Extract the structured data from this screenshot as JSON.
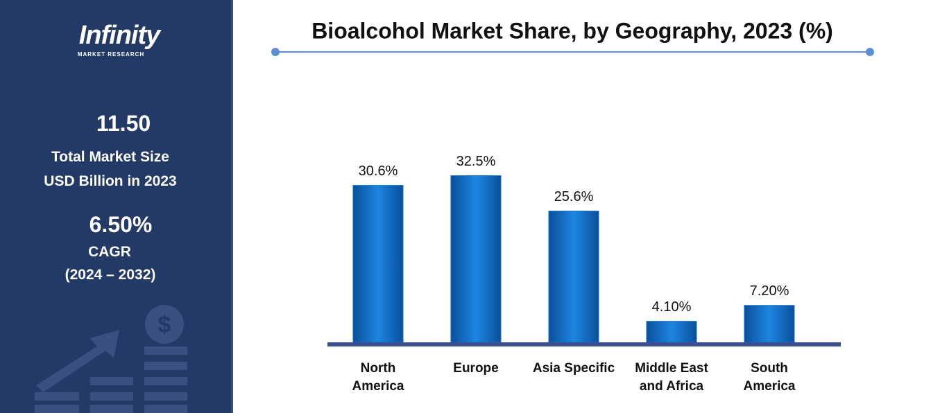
{
  "sidebar": {
    "logo": "Infinity",
    "logo_sub": "MARKET RESEARCH",
    "market_size": "11.50",
    "market_size_label_1": "Total Market Size",
    "market_size_label_2": "USD Billion in 2023",
    "cagr": "6.50%",
    "cagr_label": "CAGR",
    "cagr_period": "(2024 – 2032)"
  },
  "chart_data": {
    "type": "bar",
    "title": "Bioalcohol Market Share, by Geography, 2023 (%)",
    "categories": [
      "North America",
      "Europe",
      "Asia Specific",
      "Middle East and Africa",
      "South America"
    ],
    "values": [
      30.6,
      32.5,
      25.6,
      4.1,
      7.2
    ],
    "value_labels": [
      "30.6%",
      "32.5%",
      "25.6%",
      "4.10%",
      "7.20%"
    ],
    "color": "#1470c8"
  }
}
